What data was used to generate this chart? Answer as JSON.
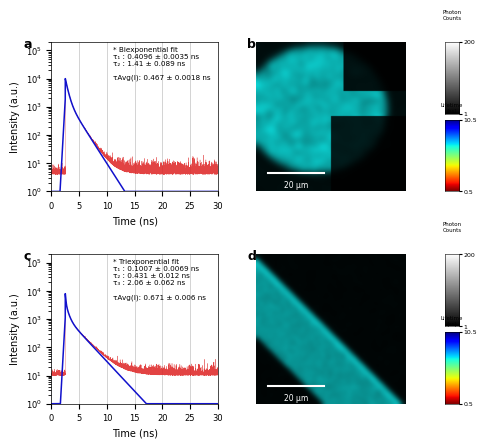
{
  "xlabel": "Time (ns)",
  "ylabel": "Intensity (a.u.)",
  "xlim": [
    0,
    30
  ],
  "ylim": [
    1,
    200000
  ],
  "xticks": [
    0,
    5,
    10,
    15,
    20,
    25,
    30
  ],
  "ann_a": "* Biexponential fit\nτ₁ : 0.4096 ± 0.0035 ns\nτ₂ : 1.41 ± 0.089 ns\n\nτAvg(I): 0.467 ± 0.0018 ns",
  "ann_c": "* Triexponential fit\nτ₁ : 0.1007 ± 0.0069 ns\nτ₂ : 0.431 ± 0.012 ns\nτ₃ : 2.06 ± 0.062 ns\n\nτAvg(I): 0.671 ± 0.006 ns",
  "scalebar": "20 μm",
  "red": "#dd2222",
  "blue": "#1111cc",
  "cb_gray_ticks": [
    1,
    200
  ],
  "cb_gray_labels": [
    "1",
    "200"
  ],
  "cb_jet_ticks": [
    0.5,
    10.5
  ],
  "cb_jet_labels": [
    "0.5",
    "10.5"
  ],
  "cb_top_label": "Photon\nCounts",
  "cb_bot_label": "Lifetime\n(ns)"
}
